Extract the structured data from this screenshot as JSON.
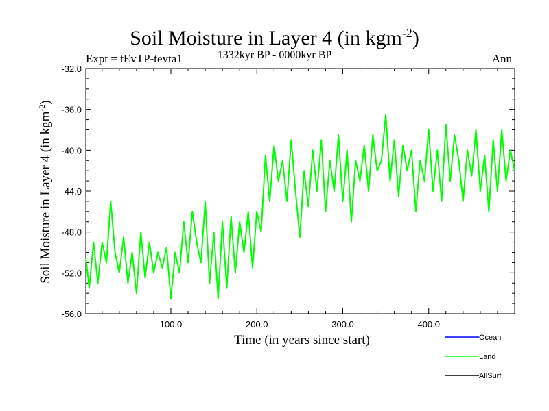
{
  "header": {
    "title_main": "Soil Moisture in Layer 4 (in kgm",
    "title_exp": "-2",
    "title_close": ")",
    "subtitle": "1332kyr BP - 0000kyr BP",
    "experiment": "Expt = tEvTP-tevta1",
    "period": "Ann"
  },
  "chart_data": {
    "type": "line",
    "title": "Soil Moisture in Layer 4 (in kgm-2)",
    "xlabel": "Time (in years since start)",
    "ylabel_main": "Soil Moisture in Layer 4 (in kgm",
    "ylabel_exp": "-2",
    "ylabel_close": ")",
    "xlim": [
      1,
      500
    ],
    "ylim": [
      -56,
      -32
    ],
    "xticks": [
      100,
      200,
      300,
      400
    ],
    "xtick_labels": [
      "100.0",
      "200.0",
      "300.0",
      "400.0"
    ],
    "yticks": [
      -32,
      -36,
      -40,
      -44,
      -48,
      -52,
      -56
    ],
    "ytick_labels": [
      "-32.0",
      "-36.0",
      "-40.0",
      "-44.0",
      "-48.0",
      "-52.0",
      "-56.0"
    ],
    "legend": [
      {
        "name": "Ocean",
        "color": "#0000ff"
      },
      {
        "name": "Land",
        "color": "#00ff00"
      },
      {
        "name": "AllSurf",
        "color": "#000000"
      }
    ],
    "series": [
      {
        "name": "Land",
        "color": "#00ff00",
        "x": [
          1,
          5,
          10,
          15,
          20,
          25,
          30,
          35,
          40,
          45,
          50,
          55,
          60,
          65,
          70,
          75,
          80,
          85,
          90,
          95,
          100,
          105,
          110,
          115,
          120,
          125,
          130,
          135,
          140,
          145,
          150,
          155,
          160,
          165,
          170,
          175,
          180,
          185,
          190,
          195,
          200,
          205,
          210,
          215,
          220,
          225,
          230,
          235,
          240,
          245,
          250,
          255,
          260,
          265,
          270,
          275,
          280,
          285,
          290,
          295,
          300,
          305,
          310,
          315,
          320,
          325,
          330,
          335,
          340,
          345,
          350,
          355,
          360,
          365,
          370,
          375,
          380,
          385,
          390,
          395,
          400,
          405,
          410,
          415,
          420,
          425,
          430,
          435,
          440,
          445,
          450,
          455,
          460,
          465,
          470,
          475,
          480,
          485,
          490,
          495,
          500
        ],
        "values": [
          -50.5,
          -53.5,
          -49,
          -53,
          -49,
          -51,
          -45,
          -50,
          -52,
          -48.5,
          -53,
          -50,
          -54,
          -48,
          -52.5,
          -49,
          -52,
          -50,
          -51.5,
          -49.5,
          -54.5,
          -50,
          -52,
          -47,
          -51,
          -46,
          -49,
          -51,
          -45,
          -53,
          -48,
          -54.5,
          -47,
          -53.5,
          -46.5,
          -52,
          -47,
          -50,
          -46,
          -51.5,
          -46,
          -48,
          -40.5,
          -45,
          -39.5,
          -43,
          -41,
          -45,
          -39,
          -44,
          -48.5,
          -42,
          -45.5,
          -40,
          -44,
          -39,
          -46,
          -41,
          -44,
          -38.5,
          -45,
          -40,
          -47,
          -41,
          -43,
          -39.5,
          -44,
          -38.5,
          -42,
          -41,
          -36.5,
          -43,
          -39,
          -44.5,
          -39.5,
          -42,
          -40,
          -46,
          -41,
          -43,
          -38,
          -44,
          -40,
          -45,
          -37.5,
          -43,
          -38.5,
          -41,
          -45,
          -40,
          -42.5,
          -38,
          -44,
          -40.5,
          -46,
          -39,
          -44,
          -38,
          -43,
          -40,
          -42
        ]
      }
    ]
  }
}
